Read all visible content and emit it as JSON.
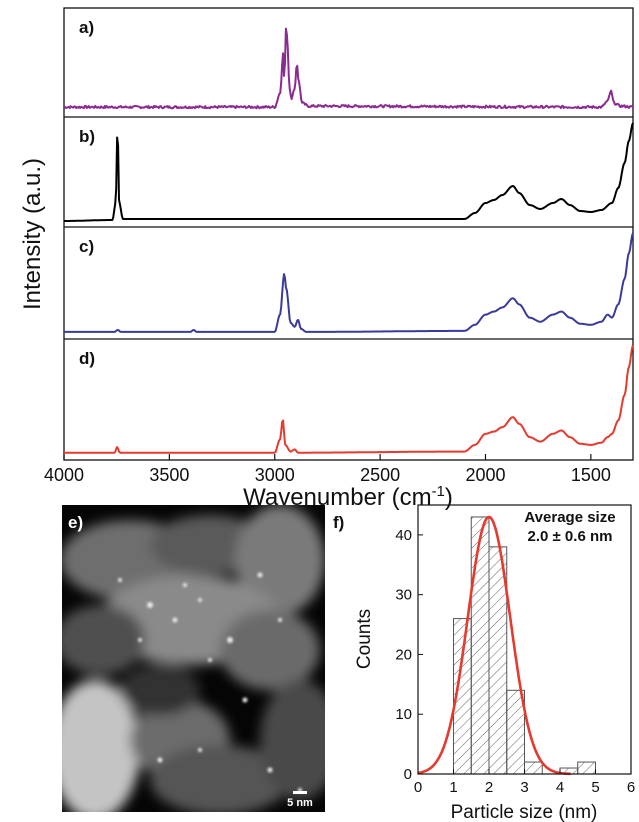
{
  "chart_data": [
    {
      "type": "line",
      "xlabel_main": "Wavenumber (cm",
      "xlabel_sup": "-1",
      "xlabel_end": ")",
      "ylabel": "Intensity (a.u.)",
      "xlim": [
        4000,
        1300
      ],
      "x_ticks": [
        4000,
        3500,
        3000,
        2500,
        2000,
        1500
      ],
      "panels": [
        {
          "label": "a)",
          "color": "#8b2a90",
          "baseline": 0.06,
          "noise": 0.012,
          "points": [
            [
              4000,
              0.06
            ],
            [
              3000,
              0.06
            ],
            [
              2975,
              0.2
            ],
            [
              2960,
              0.6
            ],
            [
              2955,
              0.35
            ],
            [
              2945,
              0.9
            ],
            [
              2940,
              0.7
            ],
            [
              2930,
              0.25
            ],
            [
              2920,
              0.15
            ],
            [
              2905,
              0.25
            ],
            [
              2895,
              0.5
            ],
            [
              2885,
              0.3
            ],
            [
              2870,
              0.1
            ],
            [
              2840,
              0.07
            ],
            [
              1450,
              0.06
            ],
            [
              1420,
              0.12
            ],
            [
              1405,
              0.22
            ],
            [
              1390,
              0.1
            ],
            [
              1360,
              0.07
            ],
            [
              1300,
              0.06
            ]
          ]
        },
        {
          "label": "b)",
          "color": "#000000",
          "baseline": 0.03,
          "noise": 0.0,
          "points": [
            [
              4000,
              0.02
            ],
            [
              3770,
              0.03
            ],
            [
              3755,
              0.2
            ],
            [
              3746,
              0.95
            ],
            [
              3738,
              0.2
            ],
            [
              3720,
              0.04
            ],
            [
              2100,
              0.04
            ],
            [
              2050,
              0.1
            ],
            [
              2000,
              0.2
            ],
            [
              1960,
              0.23
            ],
            [
              1920,
              0.28
            ],
            [
              1870,
              0.37
            ],
            [
              1840,
              0.3
            ],
            [
              1790,
              0.18
            ],
            [
              1740,
              0.14
            ],
            [
              1680,
              0.2
            ],
            [
              1640,
              0.24
            ],
            [
              1600,
              0.18
            ],
            [
              1550,
              0.12
            ],
            [
              1500,
              0.11
            ],
            [
              1450,
              0.13
            ],
            [
              1400,
              0.2
            ],
            [
              1370,
              0.35
            ],
            [
              1340,
              0.6
            ],
            [
              1320,
              0.82
            ],
            [
              1300,
              1.0
            ]
          ]
        },
        {
          "label": "c)",
          "color": "#3a3a9a",
          "baseline": 0.03,
          "noise": 0.0,
          "points": [
            [
              4000,
              0.03
            ],
            [
              3760,
              0.03
            ],
            [
              3745,
              0.05
            ],
            [
              3730,
              0.03
            ],
            [
              3400,
              0.03
            ],
            [
              3385,
              0.05
            ],
            [
              3370,
              0.03
            ],
            [
              3000,
              0.03
            ],
            [
              2975,
              0.2
            ],
            [
              2955,
              0.6
            ],
            [
              2945,
              0.45
            ],
            [
              2925,
              0.12
            ],
            [
              2905,
              0.08
            ],
            [
              2890,
              0.15
            ],
            [
              2875,
              0.06
            ],
            [
              2850,
              0.03
            ],
            [
              2100,
              0.04
            ],
            [
              2050,
              0.1
            ],
            [
              2000,
              0.2
            ],
            [
              1960,
              0.23
            ],
            [
              1920,
              0.27
            ],
            [
              1870,
              0.36
            ],
            [
              1840,
              0.3
            ],
            [
              1790,
              0.17
            ],
            [
              1740,
              0.13
            ],
            [
              1680,
              0.2
            ],
            [
              1640,
              0.23
            ],
            [
              1600,
              0.17
            ],
            [
              1550,
              0.11
            ],
            [
              1500,
              0.1
            ],
            [
              1450,
              0.13
            ],
            [
              1420,
              0.2
            ],
            [
              1400,
              0.17
            ],
            [
              1370,
              0.3
            ],
            [
              1340,
              0.55
            ],
            [
              1320,
              0.8
            ],
            [
              1300,
              1.0
            ]
          ]
        },
        {
          "label": "d)",
          "color": "#e63a2e",
          "baseline": 0.03,
          "noise": 0.0,
          "points": [
            [
              4000,
              0.03
            ],
            [
              3760,
              0.03
            ],
            [
              3748,
              0.08
            ],
            [
              3735,
              0.03
            ],
            [
              3000,
              0.03
            ],
            [
              2975,
              0.15
            ],
            [
              2962,
              0.33
            ],
            [
              2950,
              0.1
            ],
            [
              2925,
              0.04
            ],
            [
              2905,
              0.06
            ],
            [
              2890,
              0.03
            ],
            [
              2100,
              0.04
            ],
            [
              2050,
              0.1
            ],
            [
              2000,
              0.2
            ],
            [
              1960,
              0.22
            ],
            [
              1920,
              0.26
            ],
            [
              1870,
              0.35
            ],
            [
              1840,
              0.29
            ],
            [
              1790,
              0.17
            ],
            [
              1740,
              0.13
            ],
            [
              1680,
              0.2
            ],
            [
              1640,
              0.23
            ],
            [
              1600,
              0.17
            ],
            [
              1550,
              0.11
            ],
            [
              1500,
              0.1
            ],
            [
              1450,
              0.12
            ],
            [
              1420,
              0.17
            ],
            [
              1400,
              0.2
            ],
            [
              1370,
              0.32
            ],
            [
              1340,
              0.55
            ],
            [
              1320,
              0.8
            ],
            [
              1300,
              1.0
            ]
          ]
        }
      ]
    },
    {
      "type": "bar",
      "label": "f)",
      "xlabel": "Particle size (nm)",
      "ylabel": "Counts",
      "xlim": [
        0,
        6
      ],
      "ylim": [
        0,
        45
      ],
      "x_ticks": [
        0,
        1,
        2,
        3,
        4,
        5,
        6
      ],
      "y_ticks": [
        0,
        10,
        20,
        30,
        40
      ],
      "bin_width": 0.5,
      "bins": [
        {
          "start": 1.0,
          "count": 26
        },
        {
          "start": 1.5,
          "count": 43
        },
        {
          "start": 2.0,
          "count": 38
        },
        {
          "start": 2.5,
          "count": 14
        },
        {
          "start": 3.0,
          "count": 2
        },
        {
          "start": 3.5,
          "count": 0
        },
        {
          "start": 4.0,
          "count": 1
        },
        {
          "start": 4.5,
          "count": 2
        }
      ],
      "fit": {
        "mean": 2.0,
        "sd": 0.6,
        "peak": 43,
        "color": "#e63a2e"
      },
      "annotation_line1": "Average size",
      "annotation_line2": "2.0  ± 0.6  nm"
    }
  ],
  "image_panel": {
    "label": "e)",
    "scale_bar": "5 nm"
  }
}
